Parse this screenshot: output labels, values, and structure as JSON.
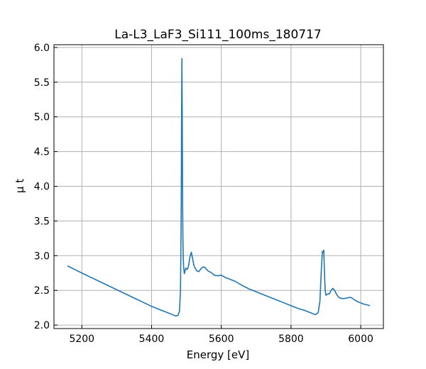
{
  "chart_data": {
    "type": "line",
    "title": "La-L3_LaF3_Si111_100ms_180717",
    "xlabel": "Energy [eV]",
    "ylabel": "μ t",
    "xlim": [
      5120,
      6065
    ],
    "ylim": [
      1.95,
      6.04
    ],
    "xticks": [
      5200,
      5400,
      5600,
      5800,
      6000
    ],
    "yticks": [
      2.0,
      2.5,
      3.0,
      3.5,
      4.0,
      4.5,
      5.0,
      5.5,
      6.0
    ],
    "xtick_labels": [
      "5200",
      "5400",
      "5600",
      "5800",
      "6000"
    ],
    "ytick_labels": [
      "2.0",
      "2.5",
      "3.0",
      "3.5",
      "4.0",
      "4.5",
      "5.0",
      "5.5",
      "6.0"
    ],
    "grid": true,
    "series": [
      {
        "color": "#1f77b4",
        "x": [
          5160,
          5200,
          5250,
          5300,
          5350,
          5400,
          5440,
          5460,
          5470,
          5476,
          5480,
          5483,
          5485,
          5486,
          5487,
          5488,
          5489,
          5490,
          5491,
          5492,
          5494,
          5498,
          5502,
          5506,
          5510,
          5514,
          5518,
          5521,
          5525,
          5530,
          5535,
          5540,
          5545,
          5550,
          5555,
          5560,
          5565,
          5570,
          5575,
          5580,
          5590,
          5600,
          5610,
          5620,
          5640,
          5660,
          5680,
          5700,
          5720,
          5740,
          5760,
          5780,
          5800,
          5820,
          5840,
          5860,
          5870,
          5878,
          5883,
          5887,
          5890,
          5892,
          5894,
          5896,
          5898,
          5900,
          5903,
          5906,
          5910,
          5915,
          5920,
          5925,
          5930,
          5935,
          5940,
          5950,
          5960,
          5970,
          5975,
          5980,
          5990,
          6000,
          6010,
          6020,
          6025
        ],
        "y": [
          2.85,
          2.75,
          2.63,
          2.51,
          2.39,
          2.27,
          2.19,
          2.15,
          2.13,
          2.14,
          2.2,
          2.5,
          3.6,
          4.9,
          5.84,
          5.0,
          3.8,
          3.2,
          2.95,
          2.84,
          2.74,
          2.82,
          2.8,
          2.85,
          2.98,
          3.05,
          2.95,
          2.87,
          2.82,
          2.78,
          2.77,
          2.8,
          2.83,
          2.84,
          2.82,
          2.79,
          2.77,
          2.76,
          2.74,
          2.72,
          2.71,
          2.72,
          2.69,
          2.67,
          2.63,
          2.57,
          2.52,
          2.48,
          2.44,
          2.4,
          2.36,
          2.32,
          2.28,
          2.24,
          2.21,
          2.17,
          2.15,
          2.18,
          2.35,
          2.8,
          3.06,
          3.05,
          3.08,
          2.75,
          2.5,
          2.43,
          2.44,
          2.45,
          2.45,
          2.5,
          2.53,
          2.5,
          2.45,
          2.41,
          2.39,
          2.38,
          2.39,
          2.4,
          2.39,
          2.37,
          2.34,
          2.32,
          2.3,
          2.29,
          2.28
        ]
      }
    ]
  }
}
